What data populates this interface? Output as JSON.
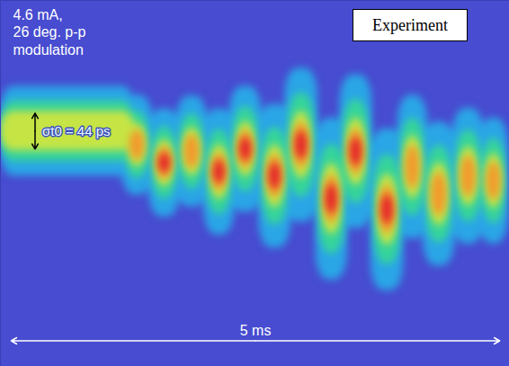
{
  "chart_data": {
    "type": "streak",
    "title": "Experiment",
    "annotations": [
      "4.6 mA,",
      "26 deg. p-p",
      "modulation"
    ],
    "xlim": [
      -0.11,
      5.1
    ],
    "ylim": [
      -288,
      160
    ],
    "tick_labels": false,
    "grid": false,
    "band": {
      "t": [
        -0.11,
        1.27
      ],
      "offset": 0,
      "length": 55,
      "peak": 3
    },
    "pulses": {
      "t": [
        1.29,
        1.57,
        1.85,
        2.13,
        2.4,
        2.7,
        2.97,
        3.28,
        3.53,
        3.85,
        4.11,
        4.38,
        4.68,
        4.94
      ],
      "offset": [
        -17,
        -39,
        -25,
        -50,
        -22,
        -55,
        -17,
        -83,
        -25,
        -96,
        -44,
        -77,
        -55,
        -61
      ],
      "length": [
        61,
        66,
        68,
        77,
        77,
        88,
        94,
        99,
        94,
        99,
        88,
        88,
        83,
        77
      ],
      "peak": [
        4,
        5,
        4,
        5,
        5,
        5,
        5,
        5,
        5,
        5,
        4,
        4,
        4,
        4
      ]
    },
    "sigma": {
      "from": 22,
      "to": -22,
      "label": "σt0 = 44 ps"
    },
    "scale_bar": {
      "from": 0,
      "to": 5,
      "label": "5 ms"
    }
  }
}
